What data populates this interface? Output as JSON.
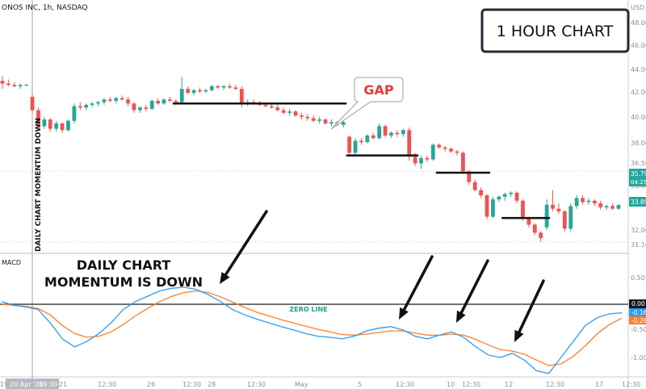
{
  "header": {
    "symbol": "ONOS INC, 1h, NASDAQ",
    "currency": "USD"
  },
  "title_box": "1 HOUR CHART",
  "colors": {
    "up": "#26a69a",
    "down": "#ef5350",
    "macd": "#2d9cf0",
    "signal": "#ff7f27",
    "arrow": "#111111",
    "gap": "#e53935"
  },
  "annotations": {
    "gap": "GAP",
    "vertical_note": "DAILY CHART MOMENTUM DOWN",
    "momentum_line1": "DAILY CHART",
    "momentum_line2": "MOMENTUM IS DOWN",
    "zero_line": "ZERO LINE"
  },
  "indicator": {
    "name": "MACD",
    "ticks": [
      "0.50",
      "-0.50",
      "-1.00"
    ],
    "zero_tag": "0.00",
    "macd_tag": "-0.16",
    "signal_tag": "-0.26"
  },
  "price_panel": {
    "ticks": [
      "48.00",
      "46.00",
      "44.00",
      "42.00",
      "40.00",
      "38.00",
      "36.50",
      "35.00",
      "32.00",
      "31.10"
    ],
    "last_price": "35.79",
    "countdown": "04:25",
    "current": "33.89"
  },
  "x_axis": {
    "labels": [
      "19",
      "20 Apr '21",
      "09:30",
      "21",
      "12:30",
      "26",
      "12:30",
      "28",
      "12:30",
      "May",
      "5",
      "12:30",
      "10",
      "12:30",
      "12",
      "12:30",
      "17",
      "12:30"
    ]
  },
  "chart_data": {
    "type": "candlestick",
    "y_price_range": [
      30.6,
      48.5
    ],
    "y_macd_range": [
      -1.4,
      0.7
    ],
    "candles": [
      [
        43.2,
        43.6,
        42.6,
        43.0
      ],
      [
        43.0,
        43.3,
        42.8,
        42.9
      ],
      [
        42.9,
        43.1,
        42.7,
        42.8
      ],
      [
        42.8,
        43.0,
        42.6,
        42.9
      ],
      [
        42.9,
        43.0,
        42.8,
        42.9
      ],
      [
        42.0,
        42.2,
        40.8,
        41.0
      ],
      [
        41.0,
        41.2,
        39.5,
        39.8
      ],
      [
        39.8,
        40.5,
        39.6,
        40.3
      ],
      [
        40.3,
        40.4,
        39.4,
        39.6
      ],
      [
        39.6,
        40.2,
        39.4,
        40.0
      ],
      [
        40.0,
        40.1,
        39.3,
        39.5
      ],
      [
        39.5,
        40.3,
        39.4,
        40.2
      ],
      [
        40.2,
        41.5,
        40.0,
        41.3
      ],
      [
        41.3,
        41.6,
        41.0,
        41.2
      ],
      [
        41.2,
        41.5,
        41.0,
        41.4
      ],
      [
        41.4,
        41.6,
        41.2,
        41.5
      ],
      [
        41.5,
        41.7,
        41.3,
        41.6
      ],
      [
        41.6,
        41.9,
        41.4,
        41.8
      ],
      [
        41.8,
        42.0,
        41.6,
        41.7
      ],
      [
        41.7,
        42.0,
        41.5,
        41.9
      ],
      [
        41.9,
        42.1,
        41.7,
        41.8
      ],
      [
        41.8,
        42.0,
        41.3,
        41.5
      ],
      [
        41.5,
        41.6,
        40.8,
        41.0
      ],
      [
        41.0,
        41.3,
        40.8,
        41.2
      ],
      [
        41.2,
        41.4,
        40.9,
        41.1
      ],
      [
        41.1,
        41.8,
        41.0,
        41.7
      ],
      [
        41.7,
        41.9,
        41.4,
        41.5
      ],
      [
        41.5,
        41.9,
        41.4,
        41.8
      ],
      [
        41.8,
        42.0,
        41.6,
        41.7
      ],
      [
        41.7,
        41.8,
        41.4,
        41.6
      ],
      [
        41.6,
        43.5,
        41.5,
        42.6
      ],
      [
        42.6,
        42.8,
        42.2,
        42.3
      ],
      [
        42.3,
        42.6,
        42.1,
        42.5
      ],
      [
        42.5,
        42.7,
        42.3,
        42.4
      ],
      [
        42.4,
        42.6,
        42.3,
        42.5
      ],
      [
        42.5,
        42.9,
        42.4,
        42.8
      ],
      [
        42.8,
        42.9,
        42.6,
        42.7
      ],
      [
        42.7,
        42.9,
        42.5,
        42.8
      ],
      [
        42.8,
        43.0,
        42.6,
        42.7
      ],
      [
        42.7,
        42.9,
        42.5,
        42.6
      ],
      [
        42.6,
        42.8,
        41.2,
        41.5
      ],
      [
        41.5,
        41.8,
        41.3,
        41.6
      ],
      [
        41.6,
        41.8,
        41.4,
        41.5
      ],
      [
        41.5,
        41.7,
        41.3,
        41.4
      ],
      [
        41.4,
        41.6,
        41.2,
        41.3
      ],
      [
        41.3,
        41.5,
        41.1,
        41.2
      ],
      [
        41.2,
        41.4,
        40.9,
        41.0
      ],
      [
        41.0,
        41.2,
        40.7,
        40.8
      ],
      [
        40.8,
        41.1,
        40.6,
        40.9
      ],
      [
        40.9,
        41.0,
        40.5,
        40.6
      ],
      [
        40.6,
        40.8,
        40.3,
        40.5
      ],
      [
        40.5,
        40.7,
        40.2,
        40.4
      ],
      [
        40.4,
        40.6,
        40.1,
        40.2
      ],
      [
        40.2,
        40.5,
        40.0,
        40.3
      ],
      [
        40.3,
        40.4,
        39.9,
        40.0
      ],
      [
        40.0,
        40.3,
        39.8,
        40.1
      ],
      [
        40.1,
        40.2,
        39.8,
        39.9
      ],
      [
        39.9,
        40.2,
        39.7,
        40.1
      ],
      [
        39.0,
        39.1,
        37.5,
        37.8
      ],
      [
        37.8,
        38.9,
        37.6,
        38.7
      ],
      [
        38.7,
        38.9,
        38.4,
        38.6
      ],
      [
        38.6,
        39.2,
        38.5,
        39.1
      ],
      [
        39.1,
        39.3,
        38.8,
        38.9
      ],
      [
        38.9,
        40.0,
        38.8,
        39.8
      ],
      [
        39.8,
        39.9,
        39.0,
        39.1
      ],
      [
        39.1,
        39.4,
        38.9,
        39.3
      ],
      [
        39.3,
        39.5,
        39.0,
        39.2
      ],
      [
        39.2,
        39.6,
        39.0,
        39.5
      ],
      [
        39.5,
        39.7,
        37.2,
        37.5
      ],
      [
        37.5,
        37.8,
        36.8,
        37.0
      ],
      [
        37.0,
        37.6,
        36.6,
        37.4
      ],
      [
        37.4,
        37.6,
        37.1,
        37.3
      ],
      [
        37.3,
        38.5,
        37.2,
        38.4
      ],
      [
        38.4,
        38.5,
        38.1,
        38.2
      ],
      [
        38.2,
        38.3,
        37.9,
        38.1
      ],
      [
        38.1,
        38.2,
        37.8,
        37.9
      ],
      [
        37.9,
        38.0,
        37.6,
        37.8
      ],
      [
        37.8,
        37.9,
        36.2,
        36.4
      ],
      [
        36.4,
        36.5,
        35.4,
        35.6
      ],
      [
        35.6,
        35.8,
        34.9,
        35.0
      ],
      [
        35.0,
        35.2,
        34.4,
        34.6
      ],
      [
        34.6,
        34.7,
        32.8,
        33.0
      ],
      [
        33.0,
        34.5,
        32.9,
        34.3
      ],
      [
        34.3,
        34.6,
        34.1,
        34.5
      ],
      [
        34.5,
        34.8,
        34.2,
        34.7
      ],
      [
        34.7,
        34.9,
        34.5,
        34.8
      ],
      [
        34.8,
        34.9,
        34.0,
        34.2
      ],
      [
        34.2,
        34.3,
        32.7,
        32.9
      ],
      [
        32.9,
        33.0,
        32.2,
        32.4
      ],
      [
        32.4,
        32.5,
        31.6,
        31.8
      ],
      [
        31.8,
        31.9,
        31.1,
        31.4
      ],
      [
        32.2,
        34.3,
        32.0,
        33.9
      ],
      [
        33.9,
        35.0,
        33.4,
        33.6
      ],
      [
        33.6,
        34.0,
        33.2,
        33.4
      ],
      [
        33.4,
        33.5,
        31.9,
        32.1
      ],
      [
        32.1,
        34.0,
        31.9,
        33.8
      ],
      [
        33.8,
        34.6,
        33.6,
        34.4
      ],
      [
        34.4,
        34.6,
        33.9,
        34.1
      ],
      [
        34.1,
        34.4,
        33.9,
        34.2
      ],
      [
        34.2,
        34.3,
        33.8,
        34.0
      ],
      [
        34.0,
        34.2,
        33.5,
        33.7
      ],
      [
        33.7,
        33.9,
        33.5,
        33.8
      ],
      [
        33.8,
        34.0,
        33.5,
        33.6
      ],
      [
        33.6,
        33.9,
        33.5,
        33.89
      ]
    ],
    "support_lines": [
      {
        "from_candle": 29,
        "to_candle": 57,
        "price": 41.5
      },
      {
        "from_candle": 58,
        "to_candle": 69,
        "price": 37.6
      },
      {
        "from_candle": 73,
        "to_candle": 81,
        "price": 36.3
      },
      {
        "from_candle": 84,
        "to_candle": 91,
        "price": 32.9
      }
    ],
    "macd": [
      0.05,
      -0.02,
      -0.05,
      -0.1,
      -0.35,
      -0.65,
      -0.8,
      -0.7,
      -0.55,
      -0.35,
      -0.1,
      0.05,
      0.15,
      0.25,
      0.3,
      0.32,
      0.28,
      0.18,
      0.05,
      -0.1,
      -0.2,
      -0.28,
      -0.35,
      -0.42,
      -0.48,
      -0.55,
      -0.6,
      -0.62,
      -0.65,
      -0.6,
      -0.5,
      -0.45,
      -0.42,
      -0.48,
      -0.6,
      -0.65,
      -0.58,
      -0.52,
      -0.62,
      -0.8,
      -0.95,
      -1.0,
      -0.92,
      -1.05,
      -1.25,
      -1.3,
      -1.0,
      -0.7,
      -0.4,
      -0.25,
      -0.18,
      -0.16
    ],
    "signal": [
      0.0,
      -0.02,
      -0.04,
      -0.08,
      -0.2,
      -0.4,
      -0.55,
      -0.62,
      -0.6,
      -0.52,
      -0.38,
      -0.22,
      -0.08,
      0.05,
      0.15,
      0.22,
      0.25,
      0.22,
      0.14,
      0.04,
      -0.06,
      -0.15,
      -0.22,
      -0.29,
      -0.35,
      -0.41,
      -0.47,
      -0.52,
      -0.57,
      -0.58,
      -0.56,
      -0.53,
      -0.5,
      -0.5,
      -0.54,
      -0.58,
      -0.58,
      -0.56,
      -0.58,
      -0.66,
      -0.76,
      -0.85,
      -0.88,
      -0.94,
      -1.05,
      -1.15,
      -1.12,
      -0.98,
      -0.78,
      -0.55,
      -0.38,
      -0.26
    ]
  }
}
